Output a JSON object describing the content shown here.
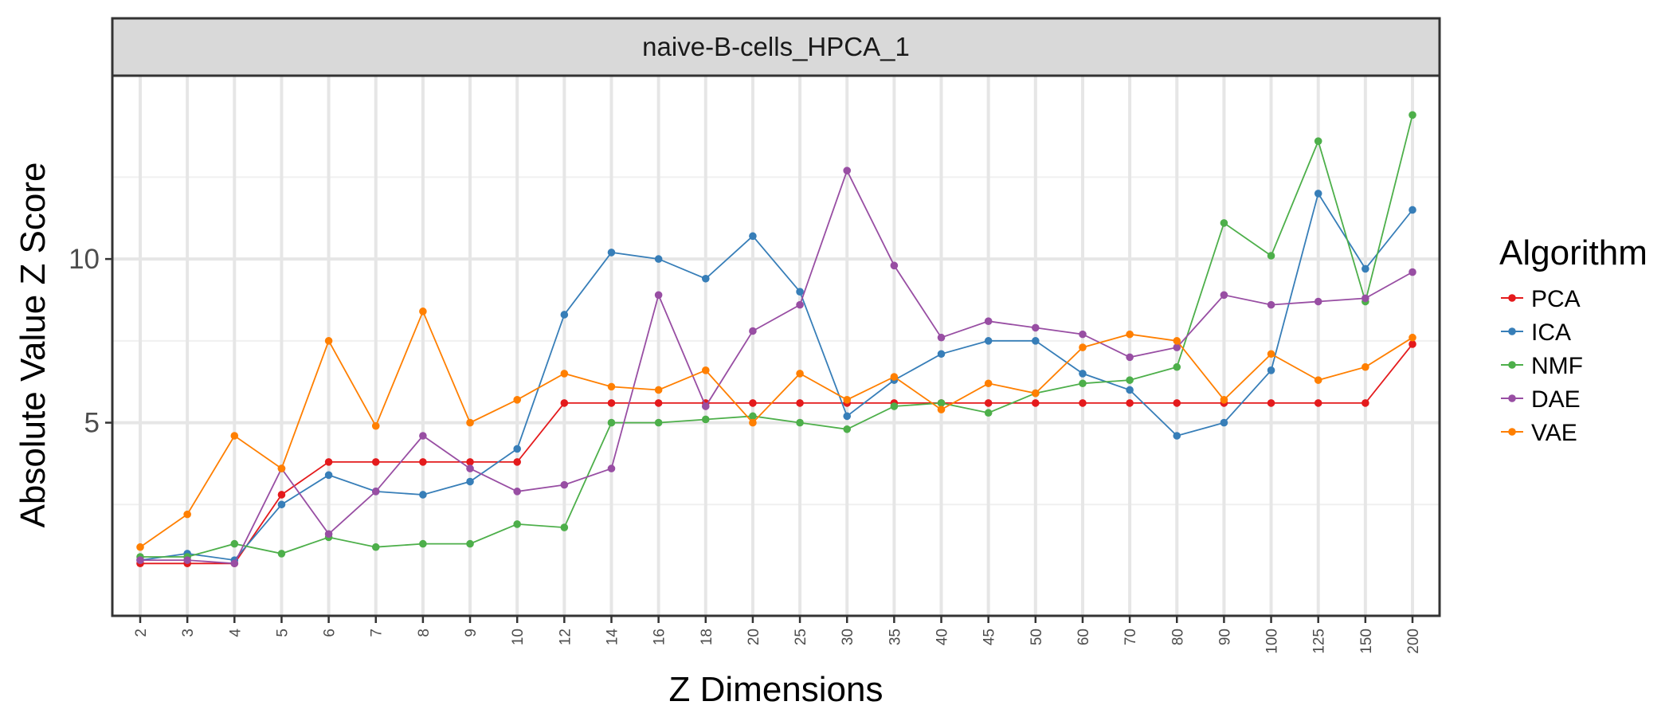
{
  "chart_data": {
    "type": "line",
    "facet_title": "naive-B-cells_HPCA_1",
    "xlabel": "Z Dimensions",
    "ylabel": "Absolute Value Z Score",
    "categories": [
      "2",
      "3",
      "4",
      "5",
      "6",
      "7",
      "8",
      "9",
      "10",
      "12",
      "14",
      "16",
      "18",
      "20",
      "25",
      "30",
      "35",
      "40",
      "45",
      "50",
      "60",
      "70",
      "80",
      "90",
      "100",
      "125",
      "150",
      "200"
    ],
    "yticks": [
      5,
      10
    ],
    "ylim": [
      -0.9,
      15.6
    ],
    "grid": true,
    "legend": {
      "title": "Algorithm",
      "position": "right"
    },
    "series": [
      {
        "name": "PCA",
        "color": "#e41a1c",
        "values": [
          0.7,
          0.7,
          0.7,
          2.8,
          3.8,
          3.8,
          3.8,
          3.8,
          3.8,
          5.6,
          5.6,
          5.6,
          5.6,
          5.6,
          5.6,
          5.6,
          5.6,
          5.6,
          5.6,
          5.6,
          5.6,
          5.6,
          5.6,
          5.6,
          5.6,
          5.6,
          5.6,
          7.4
        ]
      },
      {
        "name": "ICA",
        "color": "#377eb8",
        "values": [
          0.8,
          1.0,
          0.8,
          2.5,
          3.4,
          2.9,
          2.8,
          3.2,
          4.2,
          8.3,
          10.2,
          10.0,
          9.4,
          10.7,
          9.0,
          5.2,
          6.3,
          7.1,
          7.5,
          7.5,
          6.5,
          6.0,
          4.6,
          5.0,
          6.6,
          12.0,
          9.7,
          11.5
        ]
      },
      {
        "name": "NMF",
        "color": "#4daf4a",
        "values": [
          0.9,
          0.9,
          1.3,
          1.0,
          1.5,
          1.2,
          1.3,
          1.3,
          1.9,
          1.8,
          5.0,
          5.0,
          5.1,
          5.2,
          5.0,
          4.8,
          5.5,
          5.6,
          5.3,
          5.9,
          6.2,
          6.3,
          6.7,
          11.1,
          10.1,
          13.6,
          8.7,
          14.4
        ]
      },
      {
        "name": "DAE",
        "color": "#984ea3",
        "values": [
          0.8,
          0.8,
          0.7,
          3.6,
          1.6,
          2.9,
          4.6,
          3.6,
          2.9,
          3.1,
          3.6,
          8.9,
          5.5,
          7.8,
          8.6,
          12.7,
          9.8,
          7.6,
          8.1,
          7.9,
          7.7,
          7.0,
          7.3,
          8.9,
          8.6,
          8.7,
          8.8,
          9.6
        ]
      },
      {
        "name": "VAE",
        "color": "#ff7f00",
        "values": [
          1.2,
          2.2,
          4.6,
          3.6,
          7.5,
          4.9,
          8.4,
          5.0,
          5.7,
          6.5,
          6.1,
          6.0,
          6.6,
          5.0,
          6.5,
          5.7,
          6.4,
          5.4,
          6.2,
          5.9,
          7.3,
          7.7,
          7.5,
          5.7,
          7.1,
          6.3,
          6.7,
          7.6
        ]
      }
    ]
  }
}
